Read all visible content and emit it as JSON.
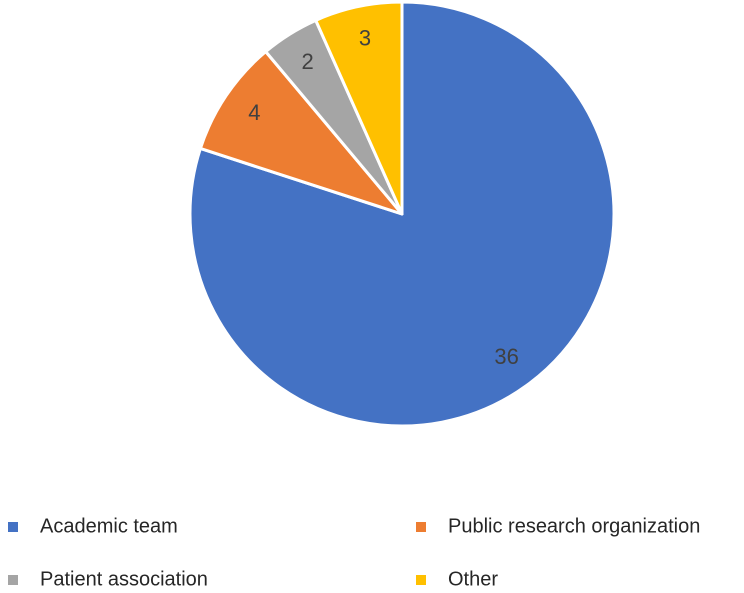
{
  "chart_data": {
    "type": "pie",
    "categories": [
      "Academic team",
      "Public research organization",
      "Patient association",
      "Other"
    ],
    "values": [
      36,
      4,
      2,
      3
    ],
    "colors": [
      "#4472c4",
      "#ed7d31",
      "#a5a5a5",
      "#ffc000"
    ],
    "legend": "bottom"
  }
}
